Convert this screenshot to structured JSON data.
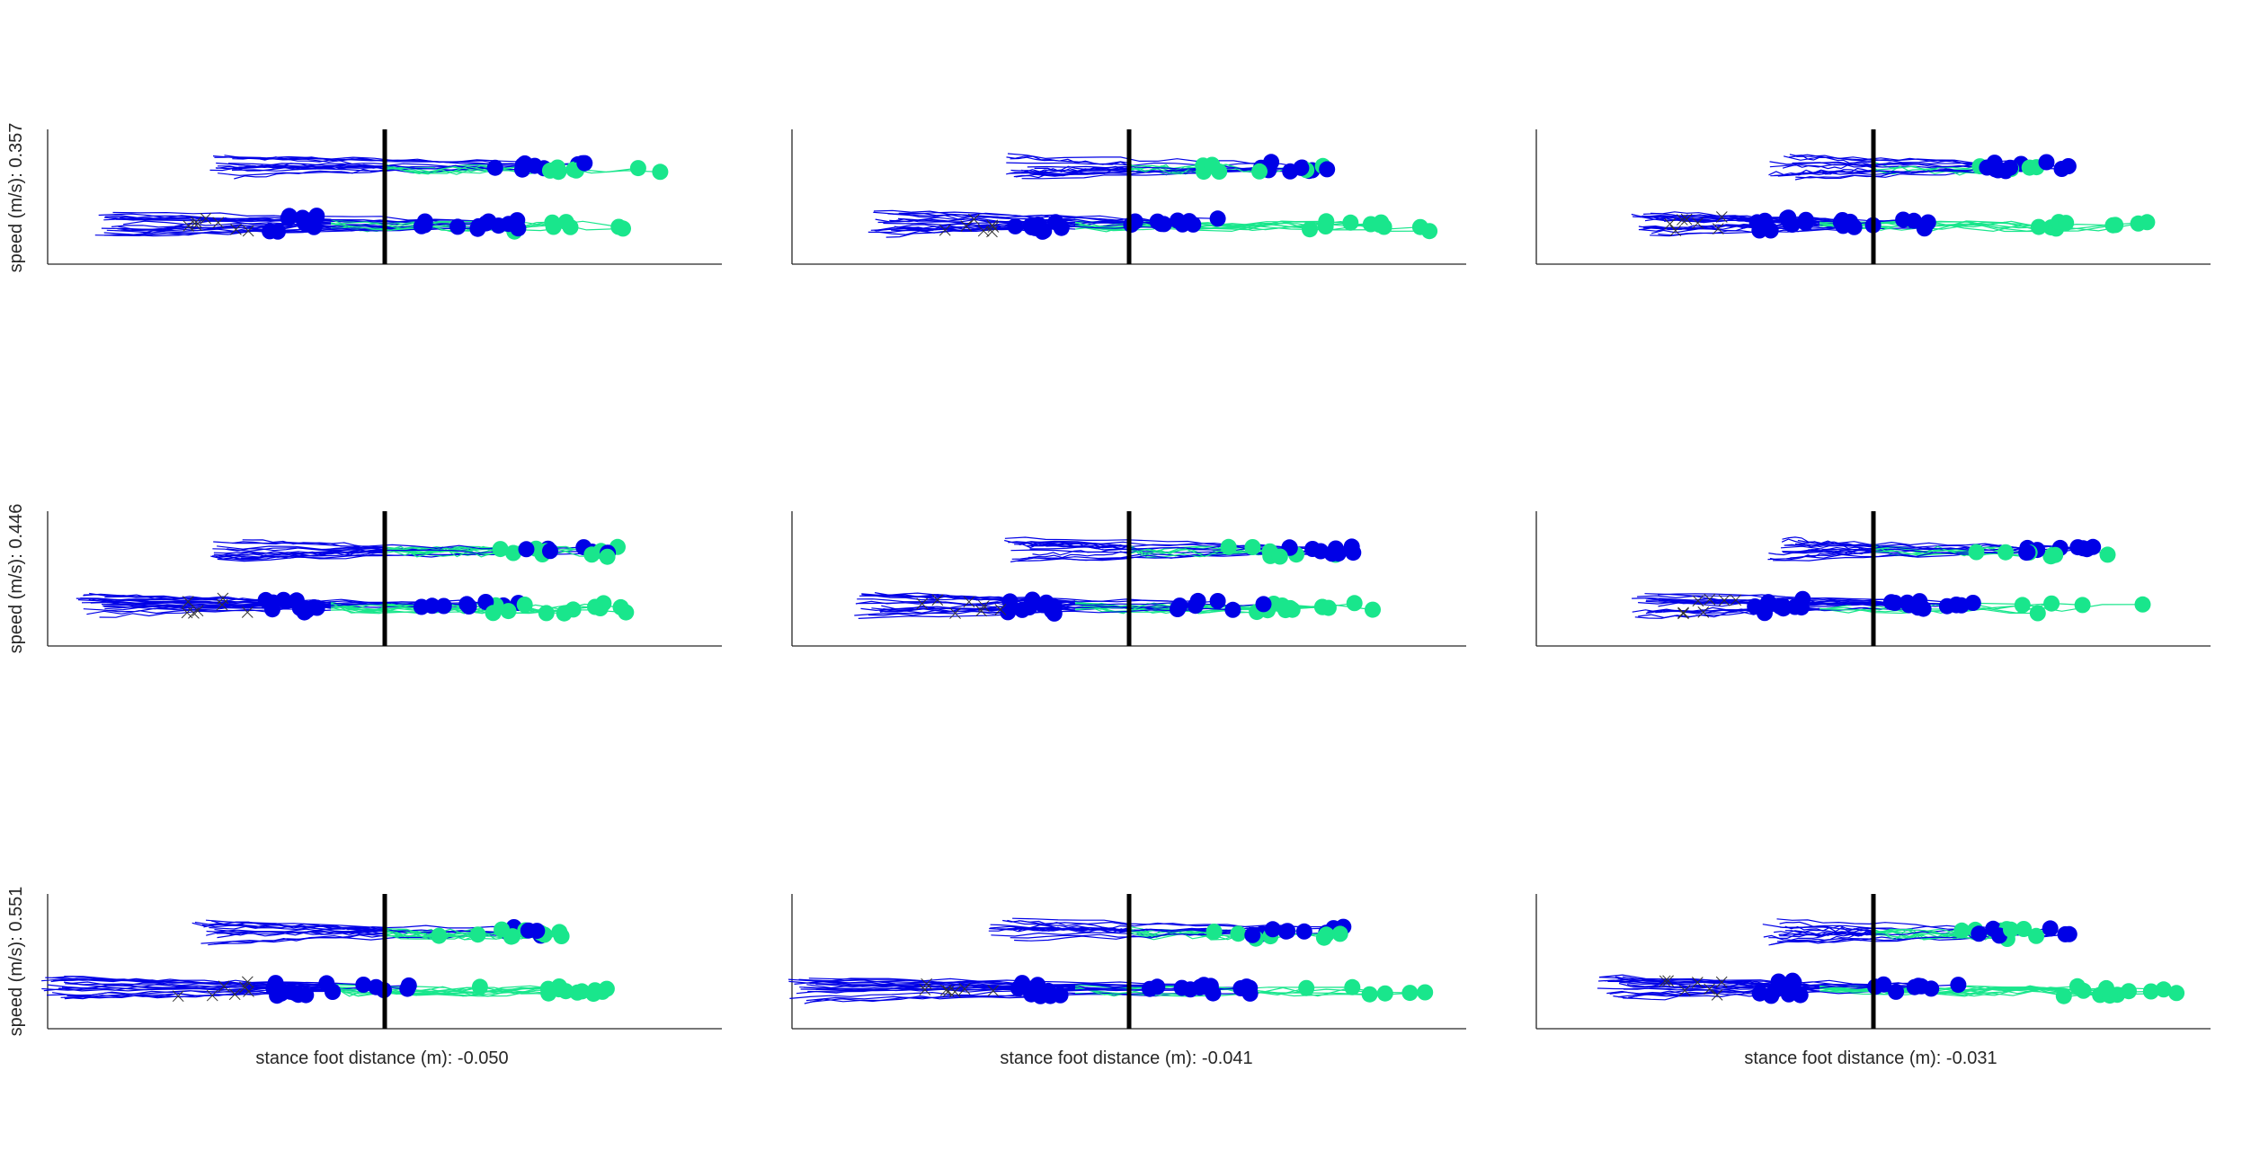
{
  "chart_data": {
    "type": "line",
    "layout": "3x3 grid of small multiples",
    "xlim": [
      -0.5,
      0.5
    ],
    "ylim": [
      0,
      1
    ],
    "grid": false,
    "legend": "none",
    "row_labels": [
      "speed (m/s): 0.357",
      "speed (m/s): 0.446",
      "speed (m/s): 0.551"
    ],
    "col_labels": [
      "stance foot distance (m): -0.050",
      "stance foot distance (m): -0.041",
      "stance foot distance (m): -0.031"
    ],
    "reference_line_x": 0,
    "series_styles": [
      {
        "kind": "blue traces and markers",
        "color": "#0000e6"
      },
      {
        "kind": "green traces and markers",
        "color": "#19e68c"
      },
      {
        "kind": "cross markers",
        "color": "#333333"
      }
    ],
    "panels": [
      {
        "row": 0,
        "col": 0,
        "upper": {
          "start": -0.25,
          "blue_end": 0.3,
          "green_end": 0.42
        },
        "lower": {
          "start": -0.42,
          "blue_end": 0.2,
          "green_end": 0.38
        }
      },
      {
        "row": 0,
        "col": 1,
        "upper": {
          "start": -0.18,
          "blue_end": 0.3,
          "green_end": 0.3
        },
        "lower": {
          "start": -0.38,
          "blue_end": 0.15,
          "green_end": 0.45
        }
      },
      {
        "row": 0,
        "col": 2,
        "upper": {
          "start": -0.15,
          "blue_end": 0.3,
          "green_end": 0.3
        },
        "lower": {
          "start": -0.35,
          "blue_end": 0.1,
          "green_end": 0.42
        }
      },
      {
        "row": 1,
        "col": 0,
        "upper": {
          "start": -0.25,
          "blue_end": 0.35,
          "green_end": 0.36
        },
        "lower": {
          "start": -0.45,
          "blue_end": 0.2,
          "green_end": 0.36
        }
      },
      {
        "row": 1,
        "col": 1,
        "upper": {
          "start": -0.18,
          "blue_end": 0.34,
          "green_end": 0.34
        },
        "lower": {
          "start": -0.4,
          "blue_end": 0.2,
          "green_end": 0.38
        }
      },
      {
        "row": 1,
        "col": 2,
        "upper": {
          "start": -0.15,
          "blue_end": 0.35,
          "green_end": 0.35
        },
        "lower": {
          "start": -0.35,
          "blue_end": 0.15,
          "green_end": 0.42
        }
      },
      {
        "row": 2,
        "col": 0,
        "upper": {
          "start": -0.28,
          "blue_end": 0.25,
          "green_end": 0.28
        },
        "lower": {
          "start": -0.5,
          "blue_end": 0.05,
          "green_end": 0.33
        }
      },
      {
        "row": 2,
        "col": 1,
        "upper": {
          "start": -0.2,
          "blue_end": 0.32,
          "green_end": 0.32
        },
        "lower": {
          "start": -0.5,
          "blue_end": 0.18,
          "green_end": 0.45
        }
      },
      {
        "row": 2,
        "col": 2,
        "upper": {
          "start": -0.16,
          "blue_end": 0.3,
          "green_end": 0.3
        },
        "lower": {
          "start": -0.4,
          "blue_end": 0.15,
          "green_end": 0.48
        }
      }
    ],
    "upper_band_y": 0.72,
    "lower_band_y": 0.3
  }
}
